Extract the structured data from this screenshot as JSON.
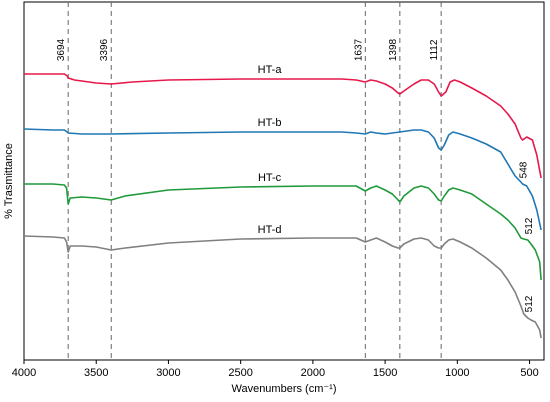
{
  "chart_data": {
    "type": "line",
    "xlabel": "Wavenumbers (cm⁻¹)",
    "ylabel": "% Trasmittance",
    "x_reversed": true,
    "xlim": [
      4000,
      400
    ],
    "x_ticks": [
      4000,
      3500,
      3000,
      2500,
      2000,
      1500,
      1000,
      500
    ],
    "y_ticks": "none",
    "grid": false,
    "legend": "none",
    "reference_lines": [
      {
        "x": 3694,
        "label": "3694"
      },
      {
        "x": 3396,
        "label": "3396"
      },
      {
        "x": 1637,
        "label": "1637"
      },
      {
        "x": 1398,
        "label": "1398"
      },
      {
        "x": 1112,
        "label": "1112"
      }
    ],
    "annotations": [
      {
        "series": "HT-b",
        "x": 548,
        "text": "548"
      },
      {
        "series": "HT-c",
        "x": 512,
        "text": "512"
      },
      {
        "series": "HT-d",
        "x": 512,
        "text": "512"
      }
    ],
    "series": [
      {
        "name": "HT-a",
        "color": "#e6194b",
        "points": [
          [
            4000,
            74
          ],
          [
            3800,
            74
          ],
          [
            3720,
            74
          ],
          [
            3700,
            76
          ],
          [
            3694,
            78
          ],
          [
            3650,
            80
          ],
          [
            3500,
            83
          ],
          [
            3396,
            84
          ],
          [
            3250,
            82
          ],
          [
            3000,
            80
          ],
          [
            2500,
            79
          ],
          [
            2100,
            79
          ],
          [
            2000,
            79
          ],
          [
            1800,
            79
          ],
          [
            1700,
            80
          ],
          [
            1637,
            82
          ],
          [
            1600,
            80
          ],
          [
            1560,
            81
          ],
          [
            1500,
            84
          ],
          [
            1450,
            88
          ],
          [
            1410,
            93
          ],
          [
            1398,
            94
          ],
          [
            1360,
            90
          ],
          [
            1300,
            84
          ],
          [
            1250,
            80
          ],
          [
            1200,
            80
          ],
          [
            1160,
            84
          ],
          [
            1130,
            92
          ],
          [
            1112,
            96
          ],
          [
            1080,
            92
          ],
          [
            1050,
            82
          ],
          [
            1020,
            80
          ],
          [
            980,
            82
          ],
          [
            900,
            88
          ],
          [
            800,
            96
          ],
          [
            700,
            106
          ],
          [
            650,
            114
          ],
          [
            600,
            124
          ],
          [
            560,
            138
          ],
          [
            548,
            140
          ],
          [
            520,
            137
          ],
          [
            480,
            140
          ],
          [
            450,
            155
          ],
          [
            420,
            178
          ]
        ]
      },
      {
        "name": "HT-b",
        "color": "#1f77b4",
        "points": [
          [
            4000,
            129
          ],
          [
            3800,
            130
          ],
          [
            3720,
            130
          ],
          [
            3700,
            132
          ],
          [
            3694,
            133
          ],
          [
            3600,
            134
          ],
          [
            3396,
            134
          ],
          [
            3000,
            133
          ],
          [
            2500,
            132
          ],
          [
            2000,
            132
          ],
          [
            1800,
            132
          ],
          [
            1700,
            133
          ],
          [
            1637,
            134
          ],
          [
            1600,
            132
          ],
          [
            1560,
            133
          ],
          [
            1500,
            134
          ],
          [
            1450,
            133
          ],
          [
            1400,
            132
          ],
          [
            1300,
            130
          ],
          [
            1250,
            130
          ],
          [
            1200,
            132
          ],
          [
            1160,
            138
          ],
          [
            1130,
            148
          ],
          [
            1112,
            150
          ],
          [
            1090,
            145
          ],
          [
            1060,
            135
          ],
          [
            1030,
            132
          ],
          [
            980,
            134
          ],
          [
            900,
            138
          ],
          [
            800,
            144
          ],
          [
            700,
            152
          ],
          [
            650,
            164
          ],
          [
            600,
            176
          ],
          [
            560,
            182
          ],
          [
            548,
            184
          ],
          [
            520,
            186
          ],
          [
            480,
            196
          ],
          [
            450,
            210
          ],
          [
            420,
            230
          ]
        ]
      },
      {
        "name": "HT-c",
        "color": "#1f9a3a",
        "points": [
          [
            4000,
            184
          ],
          [
            3800,
            184
          ],
          [
            3720,
            185
          ],
          [
            3705,
            188
          ],
          [
            3694,
            204
          ],
          [
            3680,
            198
          ],
          [
            3600,
            197
          ],
          [
            3500,
            198
          ],
          [
            3396,
            200
          ],
          [
            3300,
            196
          ],
          [
            3000,
            190
          ],
          [
            2500,
            187
          ],
          [
            2000,
            186
          ],
          [
            1800,
            186
          ],
          [
            1700,
            186
          ],
          [
            1637,
            191
          ],
          [
            1600,
            188
          ],
          [
            1560,
            186
          ],
          [
            1500,
            190
          ],
          [
            1450,
            194
          ],
          [
            1410,
            200
          ],
          [
            1398,
            202
          ],
          [
            1370,
            196
          ],
          [
            1300,
            188
          ],
          [
            1250,
            186
          ],
          [
            1200,
            188
          ],
          [
            1160,
            194
          ],
          [
            1130,
            200
          ],
          [
            1112,
            201
          ],
          [
            1090,
            196
          ],
          [
            1060,
            190
          ],
          [
            1030,
            188
          ],
          [
            980,
            190
          ],
          [
            900,
            194
          ],
          [
            800,
            204
          ],
          [
            700,
            214
          ],
          [
            650,
            220
          ],
          [
            600,
            228
          ],
          [
            560,
            238
          ],
          [
            540,
            239
          ],
          [
            512,
            240
          ],
          [
            490,
            244
          ],
          [
            460,
            250
          ],
          [
            430,
            262
          ],
          [
            420,
            280
          ]
        ]
      },
      {
        "name": "HT-d",
        "color": "#808080",
        "points": [
          [
            4000,
            236
          ],
          [
            3800,
            237
          ],
          [
            3720,
            238
          ],
          [
            3705,
            242
          ],
          [
            3694,
            252
          ],
          [
            3680,
            246
          ],
          [
            3600,
            246
          ],
          [
            3500,
            247
          ],
          [
            3396,
            250
          ],
          [
            3300,
            248
          ],
          [
            3000,
            243
          ],
          [
            2500,
            239
          ],
          [
            2000,
            238
          ],
          [
            1800,
            238
          ],
          [
            1700,
            238
          ],
          [
            1637,
            242
          ],
          [
            1600,
            240
          ],
          [
            1560,
            238
          ],
          [
            1500,
            242
          ],
          [
            1450,
            246
          ],
          [
            1410,
            248
          ],
          [
            1398,
            248
          ],
          [
            1370,
            244
          ],
          [
            1300,
            239
          ],
          [
            1250,
            238
          ],
          [
            1200,
            240
          ],
          [
            1160,
            246
          ],
          [
            1130,
            248
          ],
          [
            1112,
            248
          ],
          [
            1090,
            244
          ],
          [
            1060,
            240
          ],
          [
            1030,
            239
          ],
          [
            980,
            242
          ],
          [
            900,
            248
          ],
          [
            800,
            258
          ],
          [
            700,
            270
          ],
          [
            650,
            280
          ],
          [
            600,
            292
          ],
          [
            560,
            306
          ],
          [
            540,
            314
          ],
          [
            512,
            318
          ],
          [
            490,
            320
          ],
          [
            460,
            322
          ],
          [
            430,
            330
          ],
          [
            420,
            338
          ]
        ]
      }
    ]
  }
}
